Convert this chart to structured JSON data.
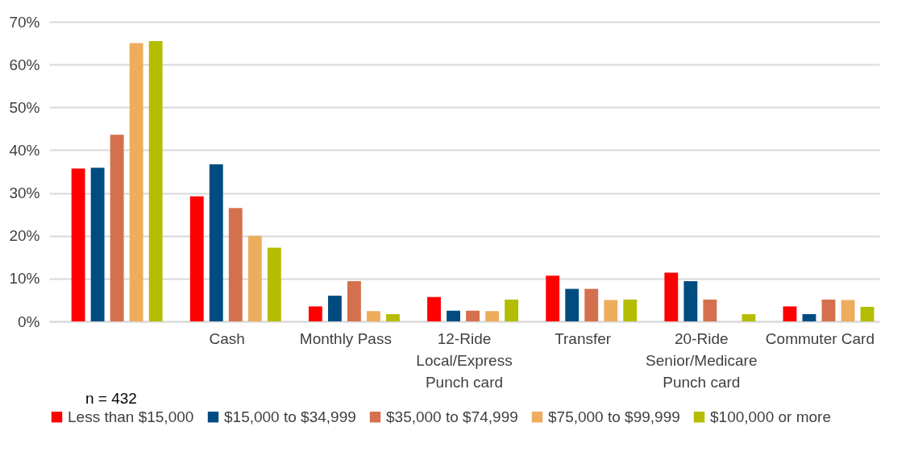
{
  "chart_data": {
    "type": "bar",
    "categories": [
      null,
      "Cash",
      "Monthly Pass",
      "12-Ride Local/Express Punch card",
      "Transfer",
      "20-Ride Senior/Medicare Punch card",
      "Commuter Card"
    ],
    "series": [
      {
        "name": "Less than $15,000",
        "color": "#ff0000",
        "values": [
          35.7,
          29.2,
          3.5,
          5.7,
          10.7,
          11.4,
          3.5
        ]
      },
      {
        "name": "$15,000 to $34,999",
        "color": "#004c80",
        "values": [
          35.9,
          36.7,
          6.0,
          2.5,
          7.6,
          9.4,
          1.7
        ]
      },
      {
        "name": "$35,000 to $74,999",
        "color": "#d4704e",
        "values": [
          43.6,
          26.5,
          9.4,
          2.5,
          7.6,
          5.1,
          5.1
        ]
      },
      {
        "name": "$75,000 to $99,999",
        "color": "#eeac5d",
        "values": [
          65.0,
          20.0,
          2.4,
          2.4,
          5.0,
          null,
          5.0
        ]
      },
      {
        "name": "$100,000 or more",
        "color": "#b5bd00",
        "values": [
          65.5,
          17.2,
          1.7,
          5.1,
          5.1,
          1.7,
          3.4
        ]
      }
    ],
    "ylim": [
      0,
      70
    ],
    "yticks": [
      {
        "value": 0,
        "label": "0%"
      },
      {
        "value": 10,
        "label": "10%"
      },
      {
        "value": 20,
        "label": "20%"
      },
      {
        "value": 30,
        "label": "30%"
      },
      {
        "value": 40,
        "label": "40%"
      },
      {
        "value": 50,
        "label": "50%"
      },
      {
        "value": 60,
        "label": "60%"
      },
      {
        "value": 70,
        "label": "70%"
      }
    ],
    "grid": "y",
    "legend": "bottom",
    "annotations": [
      "n = 432"
    ]
  }
}
